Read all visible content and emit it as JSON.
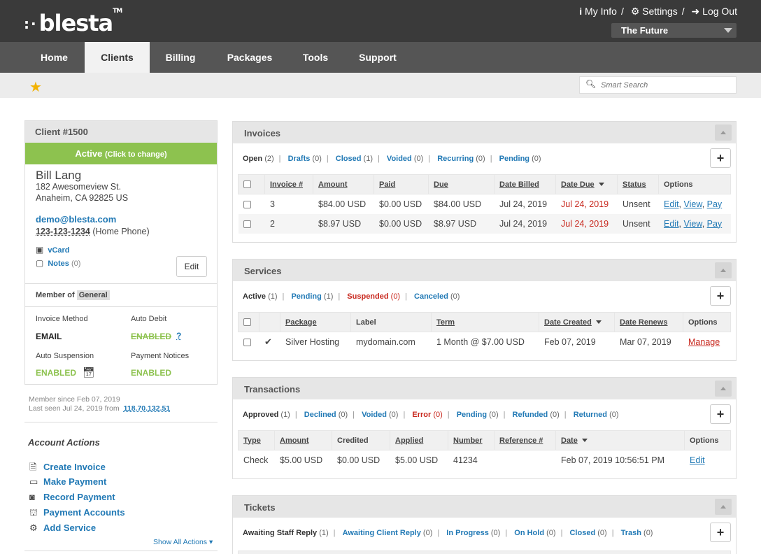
{
  "header": {
    "logo": "blesta",
    "logo_tm": "TM",
    "links": [
      "My Info",
      "Settings",
      "Log Out"
    ],
    "company": "The Future"
  },
  "nav": {
    "tabs": [
      "Home",
      "Clients",
      "Billing",
      "Packages",
      "Tools",
      "Support"
    ],
    "active": "Clients"
  },
  "search": {
    "placeholder": "Smart Search"
  },
  "client": {
    "title": "Client #1500",
    "status": "Active",
    "status_hint": "(Click to change)",
    "name": "Bill Lang",
    "address1": "182 Awesomeview St.",
    "address2": "Anaheim, CA 92825 US",
    "email": "demo@blesta.com",
    "phone": "123-123-1234",
    "phone_type": "(Home Phone)",
    "vcard": "vCard",
    "notes": "Notes",
    "notes_count": "(0)",
    "edit": "Edit",
    "member_label": "Member of",
    "member_group": "General",
    "invoice_method_label": "Invoice Method",
    "invoice_method": "EMAIL",
    "auto_debit_label": "Auto Debit",
    "auto_debit": "ENABLED",
    "auto_debit_help": "?",
    "auto_suspension_label": "Auto Suspension",
    "auto_suspension": "ENABLED",
    "payment_notices_label": "Payment Notices",
    "payment_notices": "ENABLED",
    "member_since": "Member since Feb 07, 2019",
    "last_seen": "Last seen Jul 24, 2019 from",
    "last_ip": "118.70.132.51"
  },
  "account_actions": {
    "title": "Account Actions",
    "items": [
      "Create Invoice",
      "Make Payment",
      "Record Payment",
      "Payment Accounts",
      "Add Service"
    ],
    "show_all": "Show All Actions"
  },
  "invoices": {
    "title": "Invoices",
    "filters": [
      {
        "label": "Open",
        "count": "(2)"
      },
      {
        "label": "Drafts",
        "count": "(0)"
      },
      {
        "label": "Closed",
        "count": "(1)"
      },
      {
        "label": "Voided",
        "count": "(0)"
      },
      {
        "label": "Recurring",
        "count": "(0)"
      },
      {
        "label": "Pending",
        "count": "(0)"
      }
    ],
    "columns": [
      "Invoice #",
      "Amount",
      "Paid",
      "Due",
      "Date Billed",
      "Date Due",
      "Status",
      "Options"
    ],
    "rows": [
      [
        "3",
        "$84.00 USD",
        "$0.00 USD",
        "$84.00 USD",
        "Jul 24, 2019",
        "Jul 24, 2019",
        "Unsent"
      ],
      [
        "2",
        "$8.97 USD",
        "$0.00 USD",
        "$8.97 USD",
        "Jul 24, 2019",
        "Jul 24, 2019",
        "Unsent"
      ]
    ],
    "options": [
      "Edit",
      "View",
      "Pay"
    ]
  },
  "services": {
    "title": "Services",
    "filters": [
      {
        "label": "Active",
        "count": "(1)"
      },
      {
        "label": "Pending",
        "count": "(1)"
      },
      {
        "label": "Suspended",
        "count": "(0)"
      },
      {
        "label": "Canceled",
        "count": "(0)"
      }
    ],
    "columns": [
      "Package",
      "Label",
      "Term",
      "Date Created",
      "Date Renews",
      "Options"
    ],
    "rows": [
      [
        "Silver Hosting",
        "mydomain.com",
        "1 Month @ $7.00 USD",
        "Feb 07, 2019",
        "Mar 07, 2019"
      ]
    ],
    "option": "Manage"
  },
  "transactions": {
    "title": "Transactions",
    "filters": [
      {
        "label": "Approved",
        "count": "(1)"
      },
      {
        "label": "Declined",
        "count": "(0)"
      },
      {
        "label": "Voided",
        "count": "(0)"
      },
      {
        "label": "Error",
        "count": "(0)"
      },
      {
        "label": "Pending",
        "count": "(0)"
      },
      {
        "label": "Refunded",
        "count": "(0)"
      },
      {
        "label": "Returned",
        "count": "(0)"
      }
    ],
    "columns": [
      "Type",
      "Amount",
      "Credited",
      "Applied",
      "Number",
      "Reference #",
      "Date",
      "Options"
    ],
    "rows": [
      [
        "Check",
        "$5.00 USD",
        "$0.00 USD",
        "$5.00 USD",
        "41234",
        "",
        "Feb 07, 2019 10:56:51 PM"
      ]
    ],
    "option": "Edit"
  },
  "tickets": {
    "title": "Tickets",
    "filters": [
      {
        "label": "Awaiting Staff Reply",
        "count": "(1)"
      },
      {
        "label": "Awaiting Client Reply",
        "count": "(0)"
      },
      {
        "label": "In Progress",
        "count": "(0)"
      },
      {
        "label": "On Hold",
        "count": "(0)"
      },
      {
        "label": "Closed",
        "count": "(0)"
      },
      {
        "label": "Trash",
        "count": "(0)"
      }
    ]
  },
  "colors": {
    "accent": "#2179b5",
    "active_green": "#8dc24f",
    "alert_red": "#c8281e",
    "header_dark": "#3a3a3a",
    "nav": "#555555"
  },
  "icons": [
    "info-icon",
    "gear-icon",
    "logout-icon",
    "star-icon",
    "search-icon",
    "vcard-icon",
    "notes-icon",
    "calendar-icon",
    "invoice-icon",
    "card-icon",
    "cash-icon",
    "bank-icon",
    "gear-icon",
    "plus-icon",
    "check-icon"
  ]
}
